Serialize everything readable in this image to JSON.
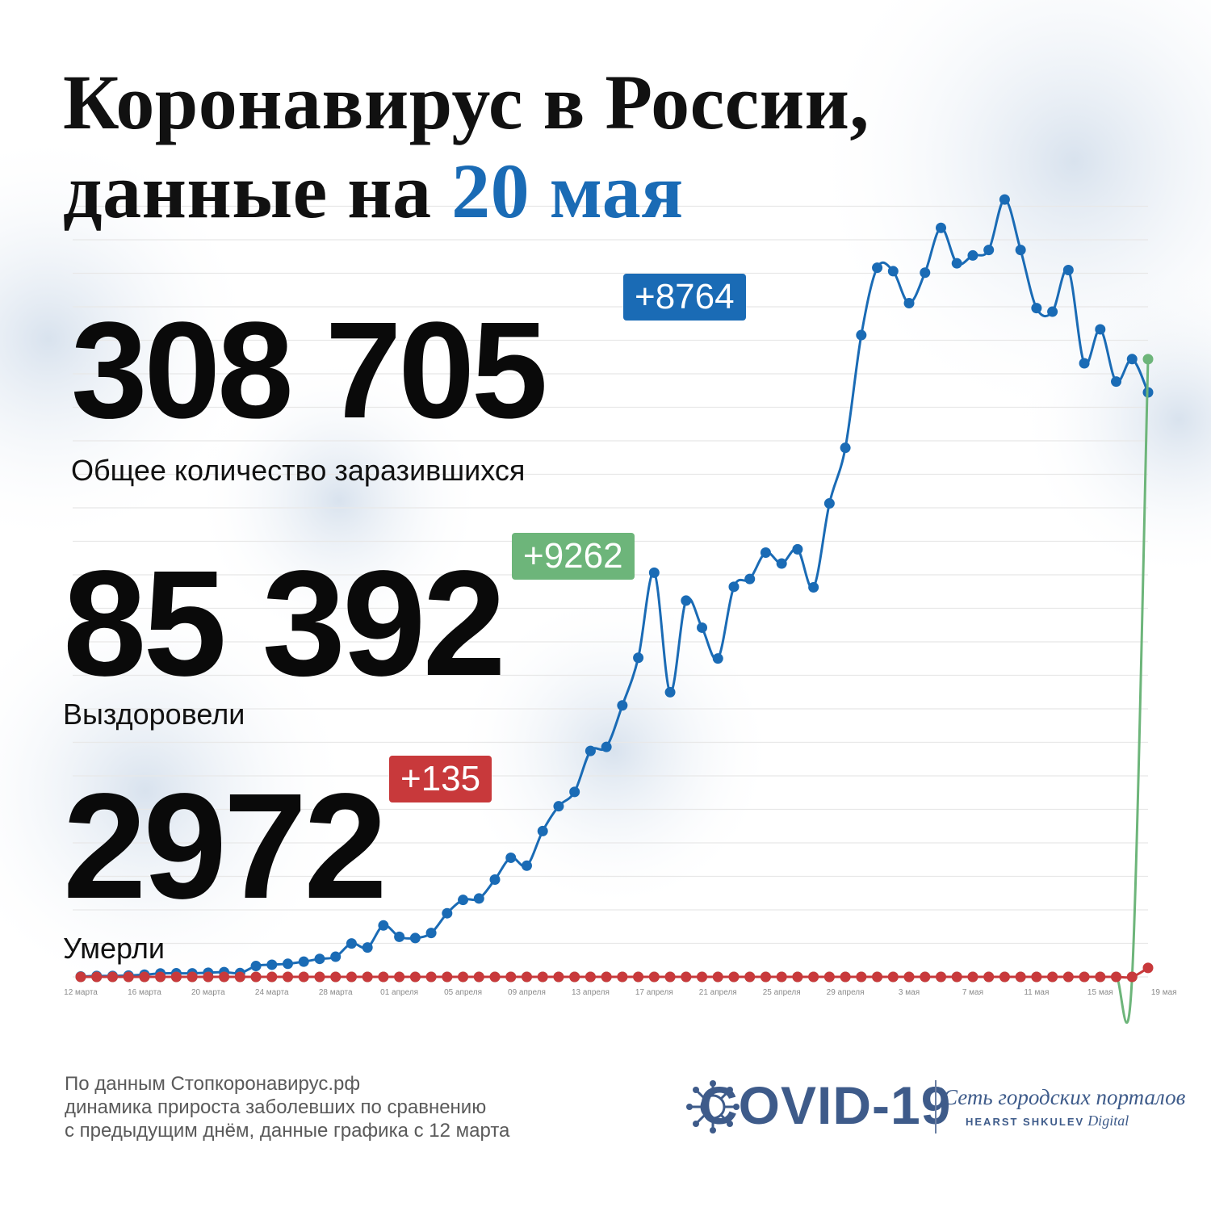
{
  "title": {
    "line1": "Коронавирус в России,",
    "line2_prefix": "данные на ",
    "line2_accent": "20 мая"
  },
  "stats": {
    "infected": {
      "value": "308 705",
      "delta": "+8764",
      "label": "Общее количество заразившихся",
      "color": "#1a6bb5"
    },
    "recovered": {
      "value": "85 392",
      "delta": "+9262",
      "label": "Выздоровели",
      "color": "#6db57a"
    },
    "deaths": {
      "value": "2972",
      "delta": "+135",
      "label": "Умерли",
      "color": "#c8393b"
    }
  },
  "footnote": {
    "line1": "По данным Стопкоронавирус.рф",
    "line2": "динамика прироста заболевших по сравнению",
    "line3": "с предыдущим днём, данные графика с 12 марта"
  },
  "logo": {
    "text": "COVID-19",
    "portal_name": "Сеть городских порталов",
    "portal_brand": "HEARST SHKULEV",
    "portal_sub": "Digital",
    "icon": "virus-icon"
  },
  "chart_data": {
    "type": "line",
    "x_tick_labels": [
      "12 марта",
      "16 марта",
      "20 марта",
      "24 марта",
      "28 марта",
      "01 апреля",
      "05 апреля",
      "09 апреля",
      "13 апреля",
      "17 апреля",
      "21 апреля",
      "25 апреля",
      "29 апреля",
      "3 мая",
      "7 мая",
      "11 мая",
      "15 мая",
      "19 мая"
    ],
    "grid": true,
    "legend": "none",
    "ylim": [
      0,
      11500
    ],
    "series": [
      {
        "color": "#1a6bb5",
        "values": [
          6,
          14,
          14,
          20,
          33,
          52,
          54,
          53,
          62,
          71,
          57,
          163,
          182,
          196,
          228,
          270,
          302,
          501,
          440,
          771,
          601,
          582,
          658,
          954,
          1154,
          1175,
          1459,
          1786,
          1667,
          2186,
          2558,
          2774,
          3388,
          3448,
          4070,
          4785,
          6060,
          4268,
          5642,
          5236,
          4774,
          5849,
          5966,
          6361,
          6198,
          6411,
          5841,
          7099,
          7933,
          9623,
          10633,
          10581,
          10102,
          10559,
          11231,
          10699,
          10817,
          10899,
          11656,
          10899,
          10028,
          9974,
          10598,
          9200,
          9709,
          8926,
          9263,
          8764
        ]
      },
      {
        "color": "#6db57a",
        "values": [
          0,
          0,
          0,
          0,
          0,
          0,
          0,
          0,
          0,
          0,
          0,
          0,
          0,
          0,
          0,
          0,
          0,
          0,
          0,
          0,
          0,
          0,
          0,
          0,
          0,
          0,
          0,
          0,
          0,
          0,
          0,
          0,
          0,
          0,
          0,
          0,
          0,
          0,
          0,
          0,
          0,
          0,
          0,
          0,
          0,
          0,
          0,
          0,
          0,
          0,
          0,
          0,
          0,
          0,
          0,
          0,
          0,
          0,
          0,
          0,
          0,
          0,
          0,
          0,
          0,
          0,
          0,
          9262
        ]
      },
      {
        "color": "#c8393b",
        "values": [
          0,
          0,
          0,
          0,
          0,
          0,
          0,
          0,
          0,
          0,
          0,
          0,
          0,
          0,
          0,
          0,
          0,
          0,
          0,
          0,
          0,
          0,
          0,
          0,
          0,
          0,
          0,
          0,
          0,
          0,
          0,
          0,
          0,
          0,
          0,
          0,
          0,
          0,
          0,
          0,
          0,
          0,
          0,
          0,
          0,
          0,
          0,
          0,
          0,
          0,
          0,
          0,
          0,
          0,
          0,
          0,
          0,
          0,
          0,
          0,
          0,
          0,
          0,
          0,
          0,
          0,
          0,
          135
        ]
      }
    ]
  }
}
